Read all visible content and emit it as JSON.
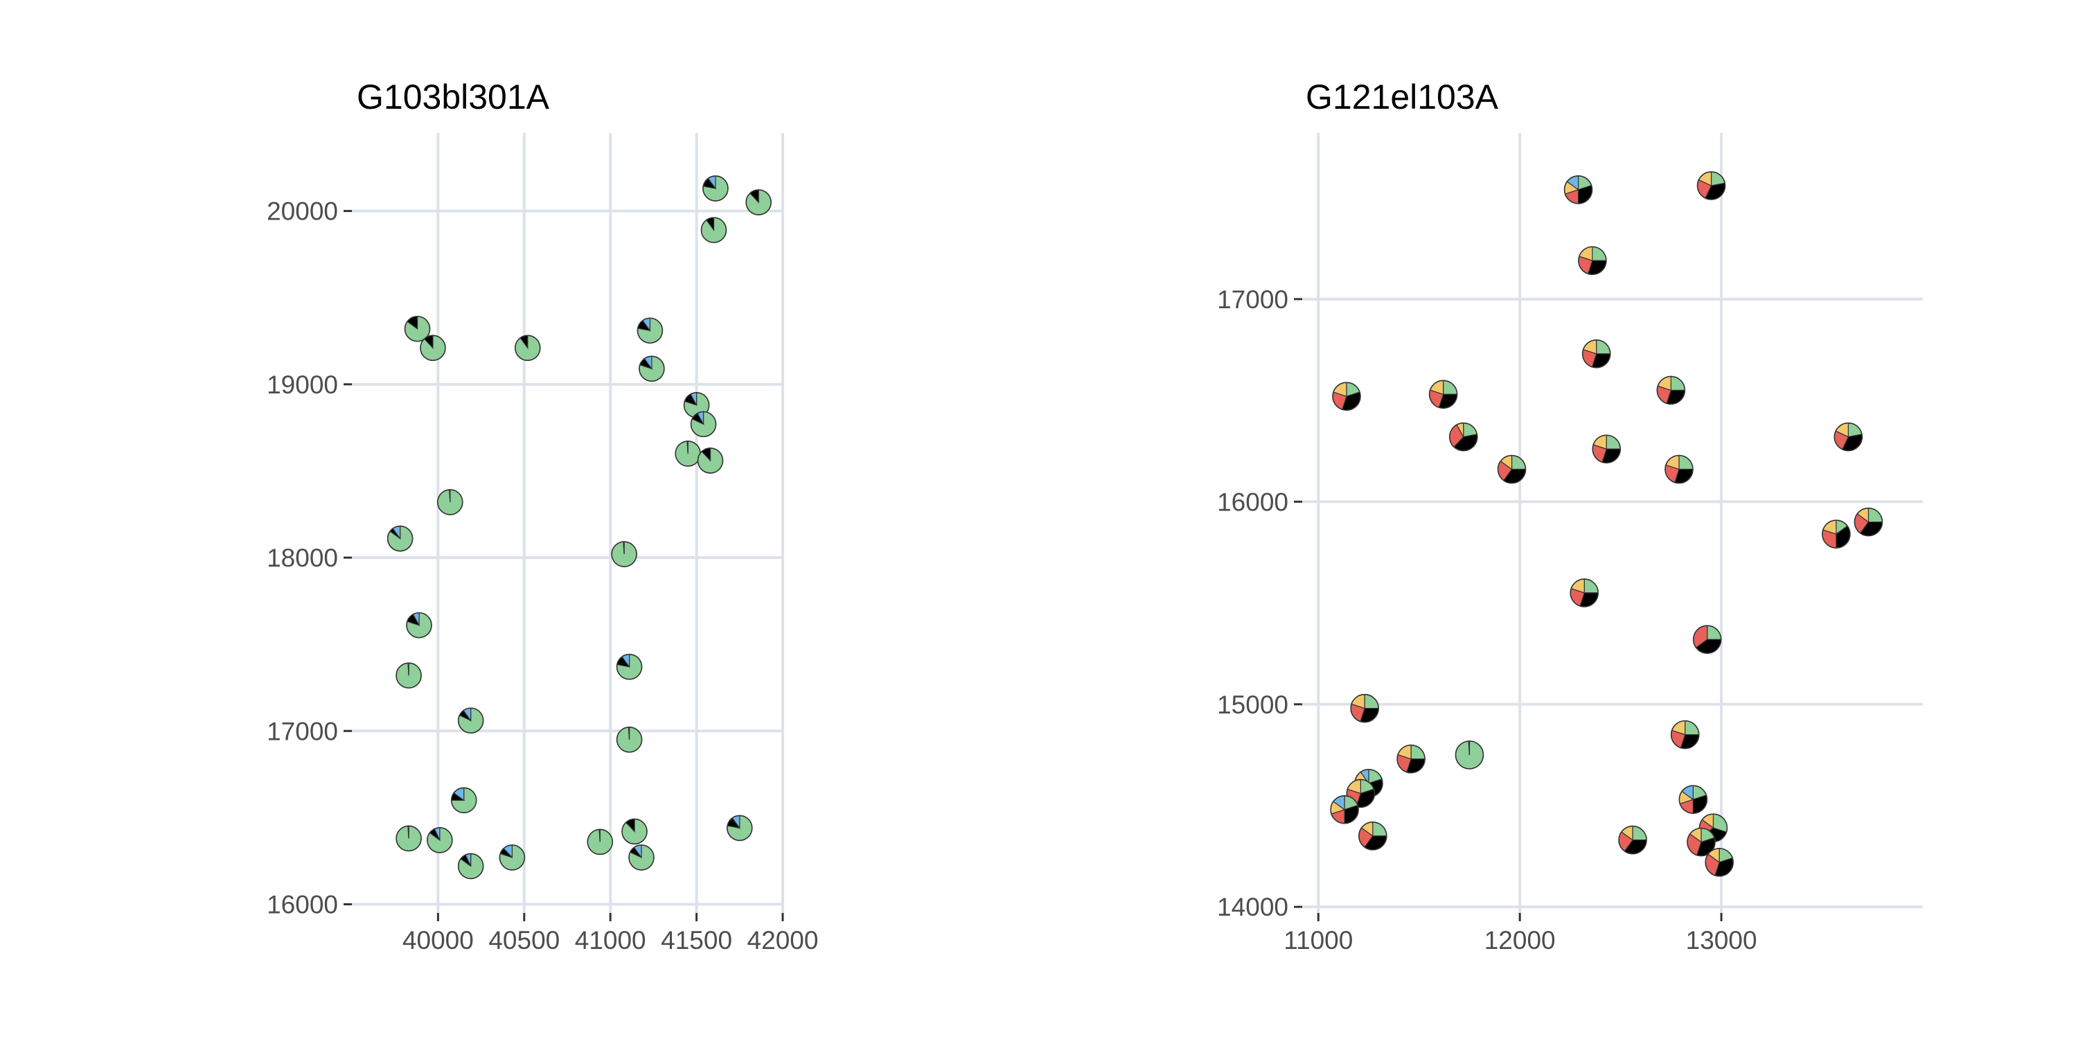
{
  "chart_data": [
    {
      "type": "scatter",
      "title": "G103bl301A",
      "xlabel": "",
      "ylabel": "",
      "xlim": [
        39500,
        42000
      ],
      "ylim": [
        15950,
        20450
      ],
      "xticks": [
        40000,
        40500,
        41000,
        41500,
        42000
      ],
      "yticks": [
        16000,
        17000,
        18000,
        19000,
        20000
      ],
      "xtick_labels": [
        "40000",
        "40500",
        "41000",
        "41500",
        "42000"
      ],
      "ytick_labels": [
        "16000",
        "17000",
        "18000",
        "19000",
        "20000"
      ],
      "grid": true,
      "marker": "pie",
      "slice_colors": [
        "#8fcf9a",
        "#000000",
        "#6fb6e8",
        "#e8605a",
        "#f2c86a"
      ],
      "points": [
        {
          "x": 41610,
          "y": 20130,
          "slices": [
            0.78,
            0.12,
            0.1
          ]
        },
        {
          "x": 41860,
          "y": 20050,
          "slices": [
            0.88,
            0.12
          ]
        },
        {
          "x": 41600,
          "y": 19890,
          "slices": [
            0.9,
            0.1
          ]
        },
        {
          "x": 39880,
          "y": 19320,
          "slices": [
            0.85,
            0.15
          ]
        },
        {
          "x": 39970,
          "y": 19210,
          "slices": [
            0.88,
            0.12
          ]
        },
        {
          "x": 40520,
          "y": 19210,
          "slices": [
            0.9,
            0.1
          ]
        },
        {
          "x": 41230,
          "y": 19310,
          "slices": [
            0.78,
            0.12,
            0.1
          ]
        },
        {
          "x": 41240,
          "y": 19090,
          "slices": [
            0.8,
            0.1,
            0.1
          ]
        },
        {
          "x": 41500,
          "y": 18880,
          "slices": [
            0.8,
            0.12,
            0.08
          ]
        },
        {
          "x": 41540,
          "y": 18770,
          "slices": [
            0.82,
            0.1,
            0.08
          ]
        },
        {
          "x": 41450,
          "y": 18600,
          "slices": [
            0.99,
            0.01
          ]
        },
        {
          "x": 41580,
          "y": 18560,
          "slices": [
            0.88,
            0.12
          ]
        },
        {
          "x": 40070,
          "y": 18320,
          "slices": [
            0.99,
            0.01
          ]
        },
        {
          "x": 39780,
          "y": 18110,
          "slices": [
            0.85,
            0.05,
            0.1
          ]
        },
        {
          "x": 41080,
          "y": 18020,
          "slices": [
            0.99,
            0.01
          ]
        },
        {
          "x": 39890,
          "y": 17610,
          "slices": [
            0.8,
            0.12,
            0.08
          ]
        },
        {
          "x": 41110,
          "y": 17370,
          "slices": [
            0.78,
            0.12,
            0.1
          ]
        },
        {
          "x": 39830,
          "y": 17320,
          "slices": [
            0.99,
            0.01
          ]
        },
        {
          "x": 40190,
          "y": 17060,
          "slices": [
            0.82,
            0.08,
            0.1
          ]
        },
        {
          "x": 41110,
          "y": 16950,
          "slices": [
            0.99,
            0.01
          ]
        },
        {
          "x": 40150,
          "y": 16600,
          "slices": [
            0.75,
            0.1,
            0.15
          ]
        },
        {
          "x": 41750,
          "y": 16440,
          "slices": [
            0.78,
            0.12,
            0.1
          ]
        },
        {
          "x": 41140,
          "y": 16420,
          "slices": [
            0.88,
            0.12
          ]
        },
        {
          "x": 39830,
          "y": 16380,
          "slices": [
            0.99,
            0.01
          ]
        },
        {
          "x": 40010,
          "y": 16370,
          "slices": [
            0.85,
            0.08,
            0.07
          ]
        },
        {
          "x": 40940,
          "y": 16360,
          "slices": [
            0.99,
            0.01
          ]
        },
        {
          "x": 40430,
          "y": 16270,
          "slices": [
            0.8,
            0.08,
            0.12
          ]
        },
        {
          "x": 41180,
          "y": 16270,
          "slices": [
            0.82,
            0.08,
            0.1
          ]
        },
        {
          "x": 40190,
          "y": 16220,
          "slices": [
            0.85,
            0.08,
            0.07
          ]
        }
      ]
    },
    {
      "type": "scatter",
      "title": "G121el103A",
      "xlabel": "",
      "ylabel": "",
      "xlim": [
        10920,
        14000
      ],
      "ylim": [
        13970,
        17820
      ],
      "xticks": [
        11000,
        12000,
        13000
      ],
      "yticks": [
        14000,
        15000,
        16000,
        17000
      ],
      "xtick_labels": [
        "11000",
        "12000",
        "13000"
      ],
      "ytick_labels": [
        "14000",
        "15000",
        "16000",
        "17000"
      ],
      "grid": true,
      "marker": "pie",
      "slice_colors": [
        "#8fcf9a",
        "#000000",
        "#e8605a",
        "#f2c86a",
        "#6fb6e8",
        "#5b7fd6"
      ],
      "points": [
        {
          "x": 12950,
          "y": 17560,
          "slices": [
            0.22,
            0.35,
            0.25,
            0.18
          ]
        },
        {
          "x": 12290,
          "y": 17540,
          "slices": [
            0.2,
            0.3,
            0.2,
            0.15,
            0.15
          ]
        },
        {
          "x": 12360,
          "y": 17190,
          "slices": [
            0.25,
            0.3,
            0.25,
            0.2
          ]
        },
        {
          "x": 12380,
          "y": 16730,
          "slices": [
            0.25,
            0.3,
            0.25,
            0.2
          ]
        },
        {
          "x": 11140,
          "y": 16520,
          "slices": [
            0.2,
            0.35,
            0.25,
            0.2
          ]
        },
        {
          "x": 11620,
          "y": 16530,
          "slices": [
            0.25,
            0.3,
            0.25,
            0.2
          ]
        },
        {
          "x": 12750,
          "y": 16550,
          "slices": [
            0.25,
            0.3,
            0.25,
            0.2
          ]
        },
        {
          "x": 13630,
          "y": 16320,
          "slices": [
            0.22,
            0.35,
            0.25,
            0.18
          ]
        },
        {
          "x": 11720,
          "y": 16320,
          "slices": [
            0.22,
            0.4,
            0.3,
            0.08
          ]
        },
        {
          "x": 12430,
          "y": 16260,
          "slices": [
            0.25,
            0.3,
            0.25,
            0.2
          ]
        },
        {
          "x": 11960,
          "y": 16160,
          "slices": [
            0.25,
            0.35,
            0.25,
            0.15
          ]
        },
        {
          "x": 12790,
          "y": 16160,
          "slices": [
            0.25,
            0.3,
            0.25,
            0.2
          ]
        },
        {
          "x": 13730,
          "y": 15900,
          "slices": [
            0.25,
            0.35,
            0.25,
            0.15
          ]
        },
        {
          "x": 13570,
          "y": 15840,
          "slices": [
            0.15,
            0.35,
            0.3,
            0.2
          ]
        },
        {
          "x": 12320,
          "y": 15550,
          "slices": [
            0.25,
            0.3,
            0.25,
            0.2
          ]
        },
        {
          "x": 12930,
          "y": 15320,
          "slices": [
            0.25,
            0.4,
            0.35
          ]
        },
        {
          "x": 11230,
          "y": 14980,
          "slices": [
            0.25,
            0.3,
            0.25,
            0.2
          ]
        },
        {
          "x": 12820,
          "y": 14850,
          "slices": [
            0.25,
            0.3,
            0.25,
            0.2
          ]
        },
        {
          "x": 11750,
          "y": 14750,
          "slices": [
            0.99,
            0.01
          ]
        },
        {
          "x": 11460,
          "y": 14730,
          "slices": [
            0.25,
            0.3,
            0.25,
            0.2
          ]
        },
        {
          "x": 11250,
          "y": 14610,
          "slices": [
            0.2,
            0.35,
            0.2,
            0.15,
            0.1
          ]
        },
        {
          "x": 11210,
          "y": 14560,
          "slices": [
            0.2,
            0.35,
            0.25,
            0.2
          ]
        },
        {
          "x": 12860,
          "y": 14530,
          "slices": [
            0.2,
            0.3,
            0.2,
            0.15,
            0.15
          ]
        },
        {
          "x": 11130,
          "y": 14480,
          "slices": [
            0.2,
            0.3,
            0.2,
            0.15,
            0.15
          ]
        },
        {
          "x": 12960,
          "y": 14390,
          "slices": [
            0.3,
            0.35,
            0.2,
            0.15
          ]
        },
        {
          "x": 11270,
          "y": 14350,
          "slices": [
            0.25,
            0.35,
            0.25,
            0.15
          ]
        },
        {
          "x": 12560,
          "y": 14330,
          "slices": [
            0.25,
            0.35,
            0.25,
            0.15
          ]
        },
        {
          "x": 12900,
          "y": 14320,
          "slices": [
            0.2,
            0.35,
            0.3,
            0.15
          ]
        },
        {
          "x": 12990,
          "y": 14220,
          "slices": [
            0.2,
            0.35,
            0.3,
            0.15
          ]
        }
      ]
    }
  ]
}
